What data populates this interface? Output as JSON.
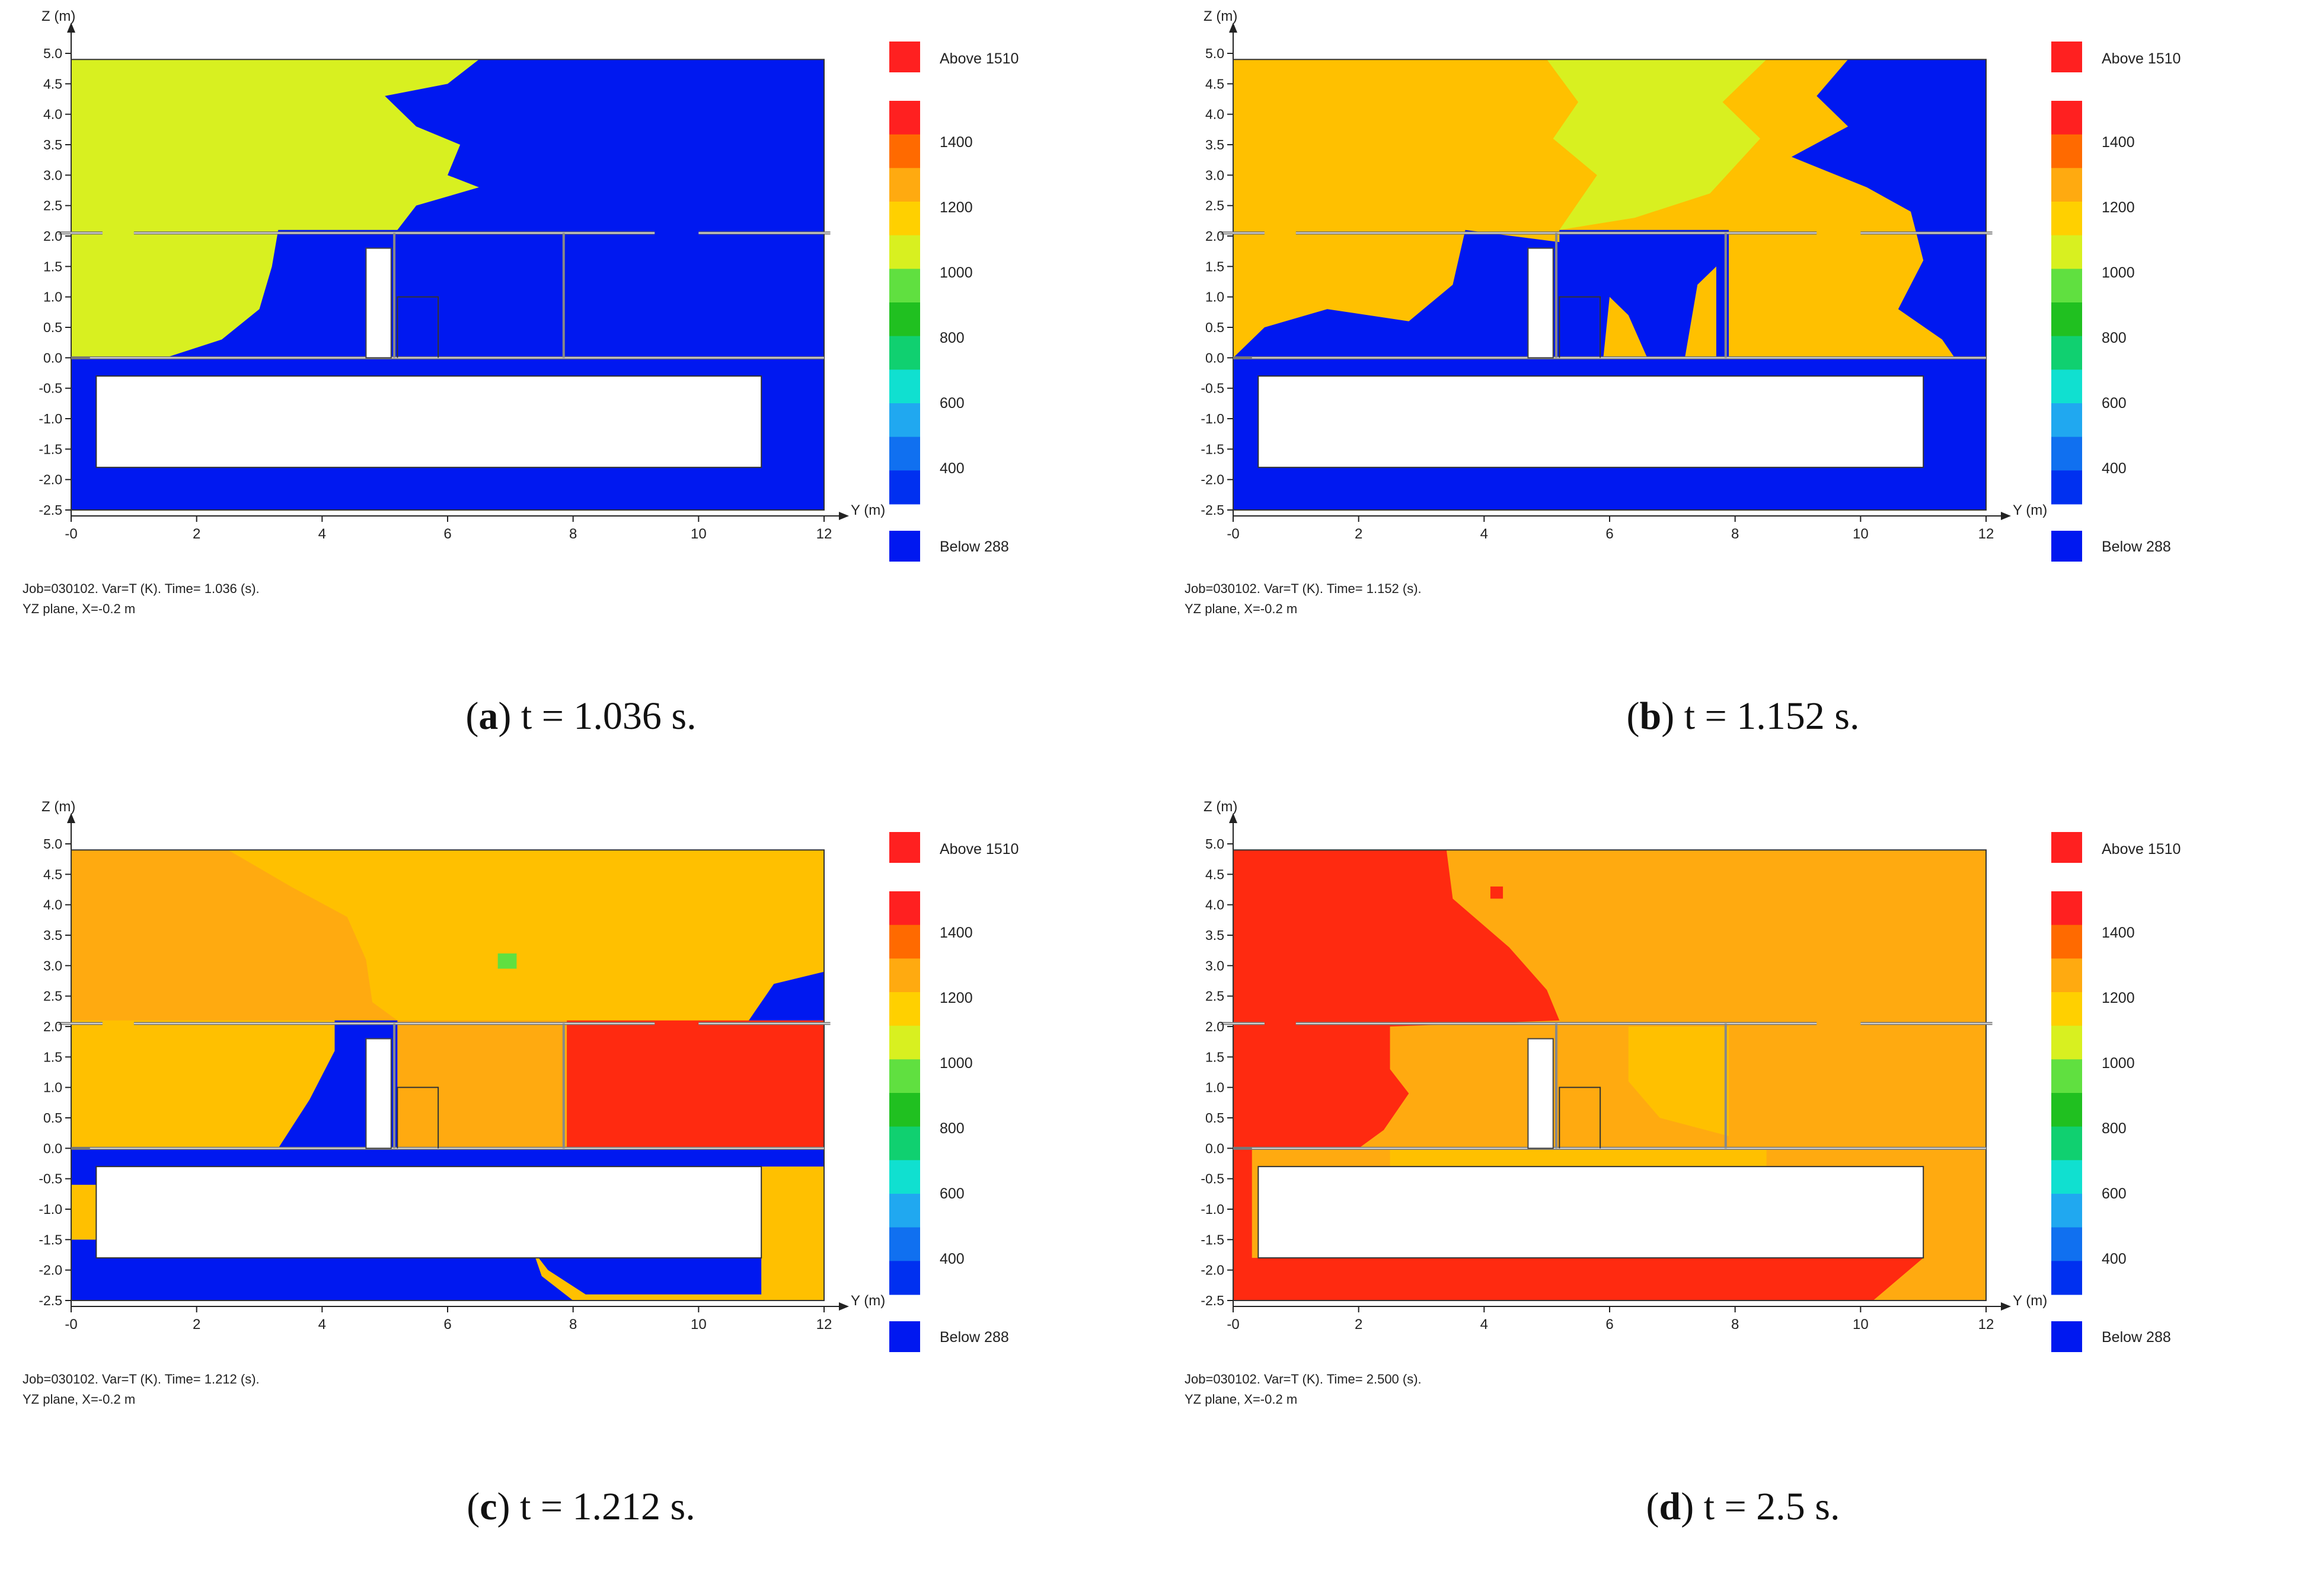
{
  "chart_data": [
    {
      "type": "heatmap",
      "id": "a",
      "caption_letter": "a",
      "caption_text": "t = 1.036 s.",
      "ylabel": "Z (m)",
      "xlabel": "Y (m)",
      "x_ticks": [
        "-0",
        "2",
        "4",
        "6",
        "8",
        "10",
        "12"
      ],
      "y_ticks": [
        "5.0",
        "4.5",
        "4.0",
        "3.5",
        "3.0",
        "2.5",
        "2.0",
        "1.5",
        "1.0",
        "0.5",
        "0.0",
        "-0.5",
        "-1.0",
        "-1.5",
        "-2.0",
        "-2.5"
      ],
      "xlim": [
        0,
        12
      ],
      "ylim": [
        -2.5,
        5.0
      ],
      "legend_above": "Above 1510",
      "legend_below": "Below 288",
      "legend_ticks": [
        "1400",
        "1200",
        "1000",
        "800",
        "600",
        "400"
      ],
      "footer_line1": "Job=030102.  Var=T (K). Time=    1.036 (s).",
      "footer_line2": "YZ plane, X=-0.2 m",
      "regions": [
        {
          "temp": 288,
          "poly": [
            [
              0,
              4.9
            ],
            [
              12,
              4.9
            ],
            [
              12,
              -2.5
            ],
            [
              0,
              -2.5
            ]
          ]
        },
        {
          "temp": 1150,
          "poly": [
            [
              0,
              4.9
            ],
            [
              6.5,
              4.9
            ],
            [
              6,
              4.5
            ],
            [
              5.0,
              4.3
            ],
            [
              5.5,
              3.8
            ],
            [
              6.2,
              3.5
            ],
            [
              6.0,
              3.0
            ],
            [
              6.5,
              2.8
            ],
            [
              5.5,
              2.5
            ],
            [
              5.2,
              2.1
            ],
            [
              3.3,
              2.1
            ],
            [
              3.2,
              1.5
            ],
            [
              3.0,
              0.8
            ],
            [
              2.4,
              0.3
            ],
            [
              1.5,
              0
            ],
            [
              0,
              0
            ]
          ]
        }
      ]
    },
    {
      "type": "heatmap",
      "id": "b",
      "caption_letter": "b",
      "caption_text": "t = 1.152 s.",
      "ylabel": "Z (m)",
      "xlabel": "Y (m)",
      "x_ticks": [
        "-0",
        "2",
        "4",
        "6",
        "8",
        "10",
        "12"
      ],
      "y_ticks": [
        "5.0",
        "4.5",
        "4.0",
        "3.5",
        "3.0",
        "2.5",
        "2.0",
        "1.5",
        "1.0",
        "0.5",
        "0.0",
        "-0.5",
        "-1.0",
        "-1.5",
        "-2.0",
        "-2.5"
      ],
      "xlim": [
        0,
        12
      ],
      "ylim": [
        -2.5,
        5.0
      ],
      "legend_above": "Above 1510",
      "legend_below": "Below 288",
      "legend_ticks": [
        "1400",
        "1200",
        "1000",
        "800",
        "600",
        "400"
      ],
      "footer_line1": "Job=030102.  Var=T (K). Time=    1.152 (s).",
      "footer_line2": "YZ plane, X=-0.2 m",
      "regions": [
        {
          "temp": 288,
          "poly": [
            [
              0,
              4.9
            ],
            [
              12,
              4.9
            ],
            [
              12,
              -2.5
            ],
            [
              0,
              -2.5
            ]
          ]
        },
        {
          "temp": 1250,
          "poly": [
            [
              0,
              4.9
            ],
            [
              9.8,
              4.9
            ],
            [
              9.3,
              4.3
            ],
            [
              9.8,
              3.8
            ],
            [
              8.9,
              3.3
            ],
            [
              10.1,
              2.8
            ],
            [
              10.8,
              2.4
            ],
            [
              11.0,
              1.6
            ],
            [
              10.6,
              0.8
            ],
            [
              11.3,
              0.3
            ],
            [
              11.5,
              0
            ],
            [
              7.9,
              0
            ],
            [
              7.9,
              2.1
            ],
            [
              5.2,
              2.1
            ],
            [
              5.2,
              1.9
            ],
            [
              3.7,
              2.1
            ],
            [
              3.5,
              1.2
            ],
            [
              2.8,
              0.6
            ],
            [
              1.5,
              0.8
            ],
            [
              0.5,
              0.5
            ],
            [
              0,
              0
            ]
          ]
        },
        {
          "temp": 1120,
          "poly": [
            [
              5.0,
              4.9
            ],
            [
              8.5,
              4.9
            ],
            [
              7.8,
              4.2
            ],
            [
              8.4,
              3.6
            ],
            [
              7.6,
              2.7
            ],
            [
              6.4,
              2.3
            ],
            [
              5.2,
              2.1
            ],
            [
              5.8,
              3.0
            ],
            [
              5.1,
              3.6
            ],
            [
              5.5,
              4.2
            ]
          ]
        },
        {
          "temp": 1250,
          "poly": [
            [
              5.9,
              0
            ],
            [
              6.6,
              0
            ],
            [
              6.3,
              0.7
            ],
            [
              6.0,
              1.0
            ]
          ]
        },
        {
          "temp": 1250,
          "poly": [
            [
              7.2,
              0
            ],
            [
              7.7,
              0
            ],
            [
              7.7,
              1.5
            ],
            [
              7.4,
              1.2
            ]
          ]
        }
      ]
    },
    {
      "type": "heatmap",
      "id": "c",
      "caption_letter": "c",
      "caption_text": "t = 1.212 s.",
      "ylabel": "Z (m)",
      "xlabel": "Y (m)",
      "x_ticks": [
        "-0",
        "2",
        "4",
        "6",
        "8",
        "10",
        "12"
      ],
      "y_ticks": [
        "5.0",
        "4.5",
        "4.0",
        "3.5",
        "3.0",
        "2.5",
        "2.0",
        "1.5",
        "1.0",
        "0.5",
        "0.0",
        "-0.5",
        "-1.0",
        "-1.5",
        "-2.0",
        "-2.5"
      ],
      "xlim": [
        0,
        12
      ],
      "ylim": [
        -2.5,
        5.0
      ],
      "legend_above": "Above 1510",
      "legend_below": "Below 288",
      "legend_ticks": [
        "1400",
        "1200",
        "1000",
        "800",
        "600",
        "400"
      ],
      "footer_line1": "Job=030102.  Var=T (K). Time=    1.212 (s).",
      "footer_line2": "YZ plane, X=-0.2 m",
      "regions": [
        {
          "temp": 1280,
          "poly": [
            [
              0,
              4.9
            ],
            [
              12,
              4.9
            ],
            [
              12,
              -2.5
            ],
            [
              0,
              -2.5
            ]
          ]
        },
        {
          "temp": 1360,
          "poly": [
            [
              0,
              4.9
            ],
            [
              2.5,
              4.9
            ],
            [
              3.5,
              4.3
            ],
            [
              4.4,
              3.8
            ],
            [
              4.7,
              3.1
            ],
            [
              4.8,
              2.4
            ],
            [
              5.2,
              2.1
            ],
            [
              0,
              2.1
            ]
          ]
        },
        {
          "temp": 1360,
          "poly": [
            [
              5.2,
              2.1
            ],
            [
              7.9,
              2.1
            ],
            [
              7.9,
              0
            ],
            [
              5.2,
              0
            ]
          ]
        },
        {
          "temp": 1450,
          "poly": [
            [
              7.9,
              2.1
            ],
            [
              12,
              2.1
            ],
            [
              12,
              0
            ],
            [
              7.9,
              0
            ]
          ]
        },
        {
          "temp": 288,
          "poly": [
            [
              4.2,
              2.1
            ],
            [
              5.2,
              2.1
            ],
            [
              5.2,
              0
            ],
            [
              3.3,
              0
            ],
            [
              3.8,
              0.8
            ],
            [
              4.2,
              1.6
            ]
          ]
        },
        {
          "temp": 288,
          "poly": [
            [
              10.8,
              2.1
            ],
            [
              12,
              2.1
            ],
            [
              12,
              2.9
            ],
            [
              11.2,
              2.7
            ]
          ]
        },
        {
          "temp": 288,
          "poly": [
            [
              0,
              0
            ],
            [
              12,
              0
            ],
            [
              12,
              -0.3
            ],
            [
              11,
              -0.3
            ],
            [
              11,
              -2.4
            ],
            [
              8.2,
              -2.4
            ],
            [
              7.6,
              -2.0
            ],
            [
              7.3,
              -1.6
            ],
            [
              7.5,
              -0.6
            ],
            [
              0,
              -0.6
            ],
            [
              0,
              -2.5
            ]
          ]
        },
        {
          "temp": 288,
          "poly": [
            [
              0,
              -2.5
            ],
            [
              8.0,
              -2.5
            ],
            [
              7.5,
              -2.1
            ],
            [
              7.3,
              -1.5
            ],
            [
              0,
              -1.5
            ]
          ]
        },
        {
          "temp": 1050,
          "poly": [
            [
              6.8,
              3.2
            ],
            [
              7.1,
              3.2
            ],
            [
              7.1,
              2.95
            ],
            [
              6.8,
              2.95
            ]
          ]
        }
      ]
    },
    {
      "type": "heatmap",
      "id": "d",
      "caption_letter": "d",
      "caption_text": "t = 2.5 s.",
      "ylabel": "Z (m)",
      "xlabel": "Y (m)",
      "x_ticks": [
        "-0",
        "2",
        "4",
        "6",
        "8",
        "10",
        "12"
      ],
      "y_ticks": [
        "5.0",
        "4.5",
        "4.0",
        "3.5",
        "3.0",
        "2.5",
        "2.0",
        "1.5",
        "1.0",
        "0.5",
        "0.0",
        "-0.5",
        "-1.0",
        "-1.5",
        "-2.0",
        "-2.5"
      ],
      "xlim": [
        0,
        12
      ],
      "ylim": [
        -2.5,
        5.0
      ],
      "legend_above": "Above 1510",
      "legend_below": "Below 288",
      "legend_ticks": [
        "1400",
        "1200",
        "1000",
        "800",
        "600",
        "400"
      ],
      "footer_line1": "Job=030102.  Var=T (K). Time=    2.500 (s).",
      "footer_line2": "YZ plane, X=-0.2 m",
      "regions": [
        {
          "temp": 1370,
          "poly": [
            [
              0,
              4.9
            ],
            [
              12,
              4.9
            ],
            [
              12,
              -2.5
            ],
            [
              0,
              -2.5
            ]
          ]
        },
        {
          "temp": 1460,
          "poly": [
            [
              0,
              4.9
            ],
            [
              3.4,
              4.9
            ],
            [
              3.5,
              4.1
            ],
            [
              4.4,
              3.3
            ],
            [
              5.0,
              2.6
            ],
            [
              5.2,
              2.1
            ],
            [
              2.5,
              2.0
            ],
            [
              2.5,
              1.3
            ],
            [
              2.8,
              0.9
            ],
            [
              2.4,
              0.3
            ],
            [
              2.0,
              0
            ],
            [
              0,
              0
            ]
          ]
        },
        {
          "temp": 1460,
          "poly": [
            [
              0,
              0
            ],
            [
              0.3,
              0
            ],
            [
              0.3,
              -2.5
            ],
            [
              0,
              -2.5
            ]
          ]
        },
        {
          "temp": 1460,
          "poly": [
            [
              0,
              -1.8
            ],
            [
              11,
              -1.8
            ],
            [
              10.2,
              -2.5
            ],
            [
              0,
              -2.5
            ]
          ]
        },
        {
          "temp": 1250,
          "poly": [
            [
              6.3,
              2.0
            ],
            [
              7.9,
              2.0
            ],
            [
              7.9,
              0.2
            ],
            [
              6.8,
              0.5
            ],
            [
              6.3,
              1.1
            ]
          ]
        },
        {
          "temp": 1250,
          "poly": [
            [
              2.5,
              0
            ],
            [
              8.5,
              0
            ],
            [
              8.5,
              -0.3
            ],
            [
              2.5,
              -0.3
            ]
          ]
        },
        {
          "temp": 1460,
          "poly": [
            [
              4.1,
              4.3
            ],
            [
              4.3,
              4.3
            ],
            [
              4.3,
              4.1
            ],
            [
              4.1,
              4.1
            ]
          ]
        }
      ]
    }
  ]
}
